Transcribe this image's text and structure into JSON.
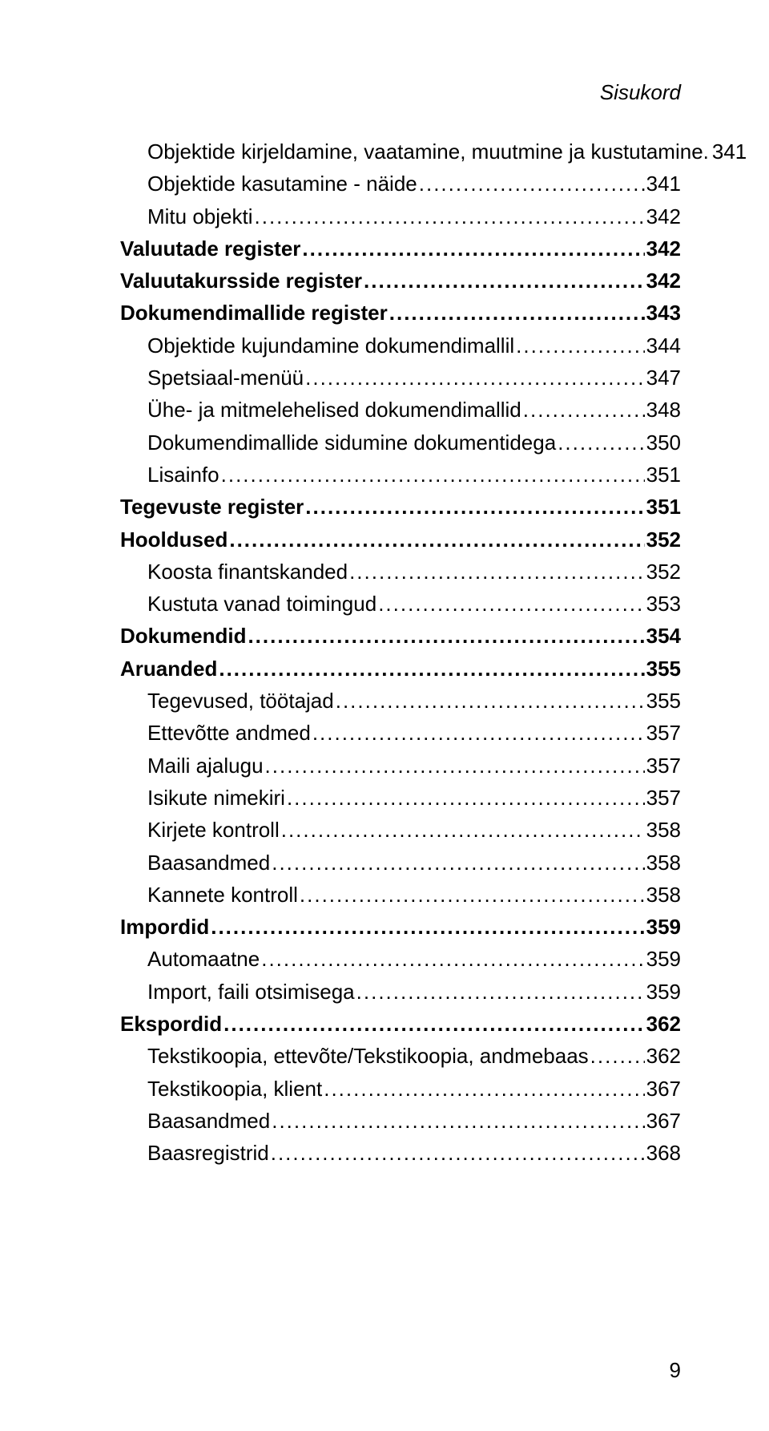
{
  "header": "Sisukord",
  "page_number": "9",
  "entries": [
    {
      "label": "Objektide kirjeldamine, vaatamine, muutmine ja kustutamine.",
      "page": "341",
      "bold": false,
      "indent": 1
    },
    {
      "label": "Objektide kasutamine - näide",
      "page": "341",
      "bold": false,
      "indent": 1
    },
    {
      "label": "Mitu objekti",
      "page": "342",
      "bold": false,
      "indent": 1
    },
    {
      "label": "Valuutade register",
      "page": "342",
      "bold": true,
      "indent": 0
    },
    {
      "label": "Valuutakursside register",
      "page": "342",
      "bold": true,
      "indent": 0
    },
    {
      "label": "Dokumendimallide register",
      "page": "343",
      "bold": true,
      "indent": 0
    },
    {
      "label": "Objektide kujundamine dokumendimallil",
      "page": "344",
      "bold": false,
      "indent": 1
    },
    {
      "label": "Spetsiaal-menüü",
      "page": "347",
      "bold": false,
      "indent": 1
    },
    {
      "label": "Ühe- ja mitmelehelised dokumendimallid",
      "page": "348",
      "bold": false,
      "indent": 1
    },
    {
      "label": "Dokumendimallide sidumine dokumentidega",
      "page": "350",
      "bold": false,
      "indent": 1
    },
    {
      "label": "Lisainfo",
      "page": "351",
      "bold": false,
      "indent": 1
    },
    {
      "label": "Tegevuste register",
      "page": "351",
      "bold": true,
      "indent": 0
    },
    {
      "label": "Hooldused",
      "page": "352",
      "bold": true,
      "indent": 0
    },
    {
      "label": "Koosta finantskanded",
      "page": "352",
      "bold": false,
      "indent": 1
    },
    {
      "label": "Kustuta vanad toimingud",
      "page": "353",
      "bold": false,
      "indent": 1
    },
    {
      "label": "Dokumendid",
      "page": "354",
      "bold": true,
      "indent": 0
    },
    {
      "label": "Aruanded",
      "page": "355",
      "bold": true,
      "indent": 0
    },
    {
      "label": "Tegevused, töötajad",
      "page": "355",
      "bold": false,
      "indent": 1
    },
    {
      "label": "Ettevõtte andmed",
      "page": "357",
      "bold": false,
      "indent": 1
    },
    {
      "label": "Maili ajalugu",
      "page": "357",
      "bold": false,
      "indent": 1
    },
    {
      "label": "Isikute nimekiri",
      "page": "357",
      "bold": false,
      "indent": 1
    },
    {
      "label": "Kirjete kontroll",
      "page": "358",
      "bold": false,
      "indent": 1
    },
    {
      "label": "Baasandmed",
      "page": "358",
      "bold": false,
      "indent": 1
    },
    {
      "label": "Kannete kontroll",
      "page": "358",
      "bold": false,
      "indent": 1
    },
    {
      "label": "Impordid",
      "page": "359",
      "bold": true,
      "indent": 0
    },
    {
      "label": "Automaatne",
      "page": "359",
      "bold": false,
      "indent": 1
    },
    {
      "label": "Import, faili otsimisega",
      "page": "359",
      "bold": false,
      "indent": 1
    },
    {
      "label": "Ekspordid",
      "page": "362",
      "bold": true,
      "indent": 0
    },
    {
      "label": "Tekstikoopia, ettevõte/Tekstikoopia, andmebaas",
      "page": "362",
      "bold": false,
      "indent": 1
    },
    {
      "label": "Tekstikoopia, klient",
      "page": "367",
      "bold": false,
      "indent": 1
    },
    {
      "label": "Baasandmed",
      "page": "367",
      "bold": false,
      "indent": 1
    },
    {
      "label": "Baasregistrid",
      "page": "368",
      "bold": false,
      "indent": 1
    }
  ]
}
